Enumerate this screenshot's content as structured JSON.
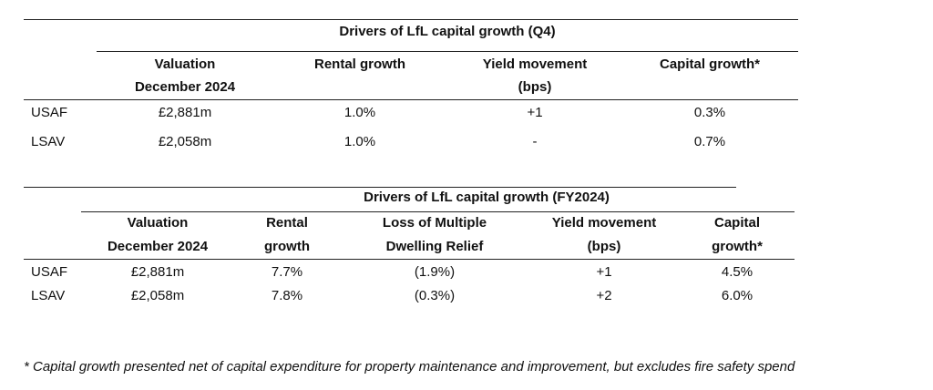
{
  "table_q4": {
    "title": "Drivers of LfL capital growth (Q4)",
    "headers": {
      "valuation": [
        "Valuation",
        "December 2024"
      ],
      "rental": "Rental growth",
      "yield": [
        "Yield movement",
        "(bps)"
      ],
      "capital": "Capital growth*"
    },
    "rows": [
      {
        "label": "USAF",
        "valuation": "£2,881m",
        "rental": "1.0%",
        "yield": "+1",
        "capital": "0.3%"
      },
      {
        "label": "LSAV",
        "valuation": "£2,058m",
        "rental": "1.0%",
        "yield": "-",
        "capital": "0.7%"
      }
    ]
  },
  "table_fy": {
    "title": "Drivers of LfL capital growth (FY2024)",
    "headers": {
      "valuation": [
        "Valuation",
        "December 2024"
      ],
      "rental": [
        "Rental",
        "growth"
      ],
      "mdr": [
        "Loss of Multiple",
        "Dwelling Relief"
      ],
      "yield": [
        "Yield movement",
        "(bps)"
      ],
      "capital": [
        "Capital",
        "growth*"
      ]
    },
    "rows": [
      {
        "label": "USAF",
        "valuation": "£2,881m",
        "rental": "7.7%",
        "mdr": "(1.9%)",
        "yield": "+1",
        "capital": "4.5%"
      },
      {
        "label": "LSAV",
        "valuation": "£2,058m",
        "rental": "7.8%",
        "mdr": "(0.3%)",
        "yield": "+2",
        "capital": "6.0%"
      }
    ]
  },
  "footnote": "* Capital growth presented net of capital expenditure for property maintenance and improvement, but excludes fire safety spend"
}
